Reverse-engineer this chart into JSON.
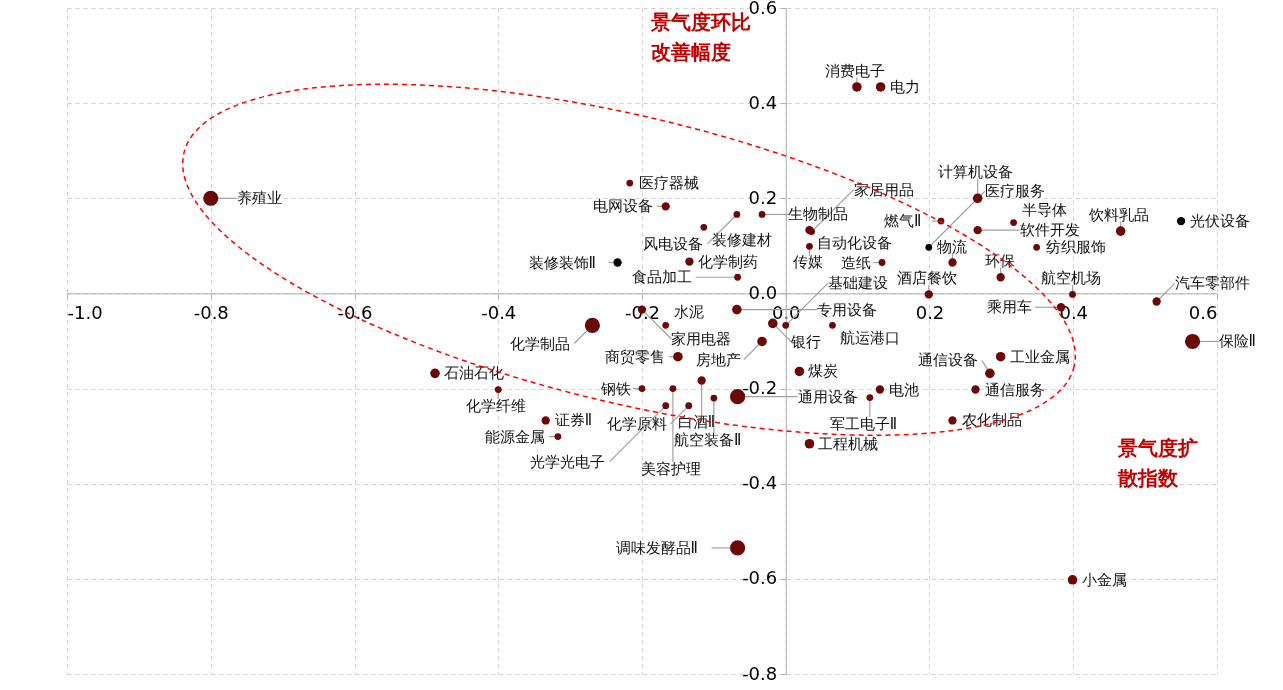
{
  "chart_data": {
    "type": "bubble",
    "xlabel": "景气度扩散指数",
    "ylabel": "景气度环比改善幅度",
    "xlim": [
      -1,
      0.6
    ],
    "ylim": [
      -0.8,
      0.6
    ],
    "xticks": [
      {
        "value": -1,
        "label": "-1.0"
      },
      -0.8,
      -0.6,
      -0.4,
      -0.2,
      {
        "value": 0,
        "label": "0.0"
      },
      0.2,
      0.4,
      0.6
    ],
    "yticks": [
      -0.8,
      -0.6,
      -0.4,
      -0.2,
      {
        "value": 0,
        "label": "0.0"
      },
      0.2,
      0.4,
      0.6
    ],
    "grid": true,
    "marker": "circle",
    "x": [
      -0.8,
      -0.488,
      -0.4,
      -0.334,
      -0.317,
      -0.217,
      -0.068,
      -0.167,
      -0.114,
      -0.134,
      -0.067,
      -0.033,
      0.033,
      0.036,
      0.033,
      -0.234,
      -0.2,
      -0.269,
      -0.167,
      -0.068,
      -0.018,
      -0.033,
      -0.15,
      -0.2,
      -0.117,
      -0.067,
      -0.1,
      -0.135,
      -0.157,
      -0.167,
      0,
      0.065,
      0.019,
      0.131,
      0.117,
      0.264,
      0.284,
      0.299,
      0.033,
      0.232,
      0.566,
      0.516,
      0.383,
      0.199,
      0.134,
      0.399,
      0.299,
      0.232,
      0.199,
      0.267,
      0.216,
      0.317,
      0.267,
      0.349,
      0.466,
      0.55,
      0.132,
      0.099,
      0.399,
      -0.067
    ],
    "values": [
      0.2,
      -0.168,
      -0.202,
      -0.267,
      -0.301,
      0.232,
      0.166,
      0.183,
      0.139,
      0.067,
      0.034,
      0.166,
      0.133,
      0.13,
      0.099,
      0.065,
      -0.034,
      -0.067,
      -0.067,
      -0.034,
      -0.063,
      -0.101,
      -0.133,
      -0.2,
      -0.183,
      -0.217,
      -0.22,
      -0.236,
      -0.2,
      -0.236,
      -0.067,
      -0.067,
      -0.164,
      -0.202,
      -0.219,
      -0.202,
      -0.168,
      -0.133,
      -0.316,
      -0.267,
      -0.101,
      -0.017,
      -0.029,
      -0.002,
      0.065,
      -0.002,
      0.034,
      0.065,
      0.097,
      0.133,
      0.152,
      0.149,
      0.2,
      0.097,
      0.131,
      0.152,
      0.434,
      0.434,
      -0.602,
      -0.535
    ],
    "sizes": [
      1,
      0.4,
      0.2,
      0.3,
      0.2,
      0.2,
      0.2,
      0.3,
      0.2,
      0.3,
      0.2,
      0.2,
      0.3,
      0.2,
      0.2,
      0.3,
      0.3,
      1,
      0.2,
      0.4,
      0.4,
      0.4,
      0.4,
      0.2,
      0.3,
      1,
      0.2,
      0.2,
      0.2,
      0.2,
      0.2,
      0.2,
      0.4,
      0.3,
      0.2,
      0.3,
      0.4,
      0.4,
      0.4,
      0.3,
      1,
      0.3,
      0.3,
      0.3,
      0.2,
      0.2,
      0.3,
      0.3,
      0.2,
      0.3,
      0.2,
      0.2,
      0.4,
      0.2,
      0.4,
      0.3,
      0.4,
      0.4,
      0.4,
      1
    ],
    "colors": [
      "#6b0808",
      "#6b0808",
      "#6b0808",
      "#6b0808",
      "#6b0808",
      "#6b0808",
      "#6b0808",
      "#6b0808",
      "#6b0808",
      "#6b0808",
      "#6b0808",
      "#6b0808",
      "#6b0808",
      "#6b0808",
      "#6b0808",
      "#000000",
      "#6b0808",
      "#6b0808",
      "#6b0808",
      "#6b0808",
      "#6b0808",
      "#6b0808",
      "#6b0808",
      "#6b0808",
      "#6b0808",
      "#6b0808",
      "#6b0808",
      "#6b0808",
      "#6b0808",
      "#6b0808",
      "#6b0808",
      "#6b0808",
      "#6b0808",
      "#6b0808",
      "#6b0808",
      "#6b0808",
      "#6b0808",
      "#6b0808",
      "#6b0808",
      "#6b0808",
      "#6b0808",
      "#6b0808",
      "#6b0808",
      "#6b0808",
      "#6b0808",
      "#6b0808",
      "#6b0808",
      "#6b0808",
      "#000000",
      "#6b0808",
      "#6b0808",
      "#6b0808",
      "#6b0808",
      "#6b0808",
      "#6b0808",
      "#000000",
      "#6b0808",
      "#6b0808",
      "#6b0808",
      "#6b0808"
    ],
    "annotations": [
      {
        "text": "养殖业",
        "x": -0.8,
        "y": 0.2
      },
      {
        "text": "石油石化",
        "x": -0.488,
        "y": -0.168
      },
      {
        "text": "化学纤维",
        "x": -0.4,
        "y": -0.202
      },
      {
        "text": "证券Ⅱ",
        "x": -0.334,
        "y": -0.267
      },
      {
        "text": "能源金属",
        "x": -0.317,
        "y": -0.301
      },
      {
        "text": "医疗器械",
        "x": -0.217,
        "y": 0.232
      },
      {
        "text": "风电设备",
        "x": -0.068,
        "y": 0.166
      },
      {
        "text": "电网设备",
        "x": -0.167,
        "y": 0.183
      },
      {
        "text": "装修建材",
        "x": -0.114,
        "y": 0.139
      },
      {
        "text": "化学制药",
        "x": -0.134,
        "y": 0.067
      },
      {
        "text": "食品加工",
        "x": -0.067,
        "y": 0.034
      },
      {
        "text": "生物制品",
        "x": -0.033,
        "y": 0.166
      },
      {
        "text": "自动化设备",
        "x": 0.033,
        "y": 0.133
      },
      {
        "text": "家居用品",
        "x": 0.036,
        "y": 0.13
      },
      {
        "text": "传媒",
        "x": 0.033,
        "y": 0.099
      },
      {
        "text": "装修装饰Ⅱ",
        "x": -0.234,
        "y": 0.065
      },
      {
        "text": "家用电器",
        "x": -0.2,
        "y": -0.034
      },
      {
        "text": "化学制品",
        "x": -0.269,
        "y": -0.067
      },
      {
        "text": "水泥",
        "x": -0.167,
        "y": -0.067
      },
      {
        "text": "专用设备",
        "x": -0.068,
        "y": -0.034
      },
      {
        "text": "银行",
        "x": -0.018,
        "y": -0.063
      },
      {
        "text": "房地产",
        "x": -0.033,
        "y": -0.101
      },
      {
        "text": "商贸零售",
        "x": -0.15,
        "y": -0.133
      },
      {
        "text": "钢铁",
        "x": -0.2,
        "y": -0.2
      },
      {
        "text": "白酒Ⅱ",
        "x": -0.117,
        "y": -0.183
      },
      {
        "text": "通用设备",
        "x": -0.067,
        "y": -0.217
      },
      {
        "text": "航空装备Ⅱ",
        "x": -0.1,
        "y": -0.22
      },
      {
        "text": "化学原料",
        "x": -0.135,
        "y": -0.236
      },
      {
        "text": "美容护理",
        "x": -0.157,
        "y": -0.2
      },
      {
        "text": "光学光电子",
        "x": -0.167,
        "y": -0.236
      },
      {
        "text": "基础建设",
        "x": 0,
        "y": -0.067
      },
      {
        "text": "航运港口",
        "x": 0.065,
        "y": -0.067
      },
      {
        "text": "煤炭",
        "x": 0.019,
        "y": -0.164
      },
      {
        "text": "电池",
        "x": 0.131,
        "y": -0.202
      },
      {
        "text": "军工电子Ⅱ",
        "x": 0.117,
        "y": -0.219
      },
      {
        "text": "通信服务",
        "x": 0.264,
        "y": -0.202
      },
      {
        "text": "通信设备",
        "x": 0.284,
        "y": -0.168
      },
      {
        "text": "工业金属",
        "x": 0.299,
        "y": -0.133
      },
      {
        "text": "工程机械",
        "x": 0.033,
        "y": -0.316
      },
      {
        "text": "农化制品",
        "x": 0.232,
        "y": -0.267
      },
      {
        "text": "保险Ⅱ",
        "x": 0.566,
        "y": -0.101
      },
      {
        "text": "汽车零部件",
        "x": 0.516,
        "y": -0.017
      },
      {
        "text": "乘用车",
        "x": 0.383,
        "y": -0.029
      },
      {
        "text": "酒店餐饮",
        "x": 0.199,
        "y": -0.002
      },
      {
        "text": "造纸",
        "x": 0.134,
        "y": 0.065
      },
      {
        "text": "航空机场",
        "x": 0.399,
        "y": -0.002
      },
      {
        "text": "环保",
        "x": 0.299,
        "y": 0.034
      },
      {
        "text": "物流",
        "x": 0.232,
        "y": 0.065
      },
      {
        "text": "医疗服务",
        "x": 0.199,
        "y": 0.097
      },
      {
        "text": "软件开发",
        "x": 0.267,
        "y": 0.133
      },
      {
        "text": "燃气Ⅱ",
        "x": 0.216,
        "y": 0.152
      },
      {
        "text": "半导体",
        "x": 0.317,
        "y": 0.149
      },
      {
        "text": "计算机设备",
        "x": 0.267,
        "y": 0.2
      },
      {
        "text": "纺织服饰",
        "x": 0.349,
        "y": 0.097
      },
      {
        "text": "饮料乳品",
        "x": 0.466,
        "y": 0.131
      },
      {
        "text": "光伏设备",
        "x": 0.55,
        "y": 0.152
      },
      {
        "text": "电力",
        "x": 0.132,
        "y": 0.434
      },
      {
        "text": "消费电子",
        "x": 0.099,
        "y": 0.434
      },
      {
        "text": "小金属",
        "x": 0.399,
        "y": -0.602
      },
      {
        "text": "调味发酵品Ⅱ",
        "x": -0.067,
        "y": -0.535
      }
    ]
  }
}
